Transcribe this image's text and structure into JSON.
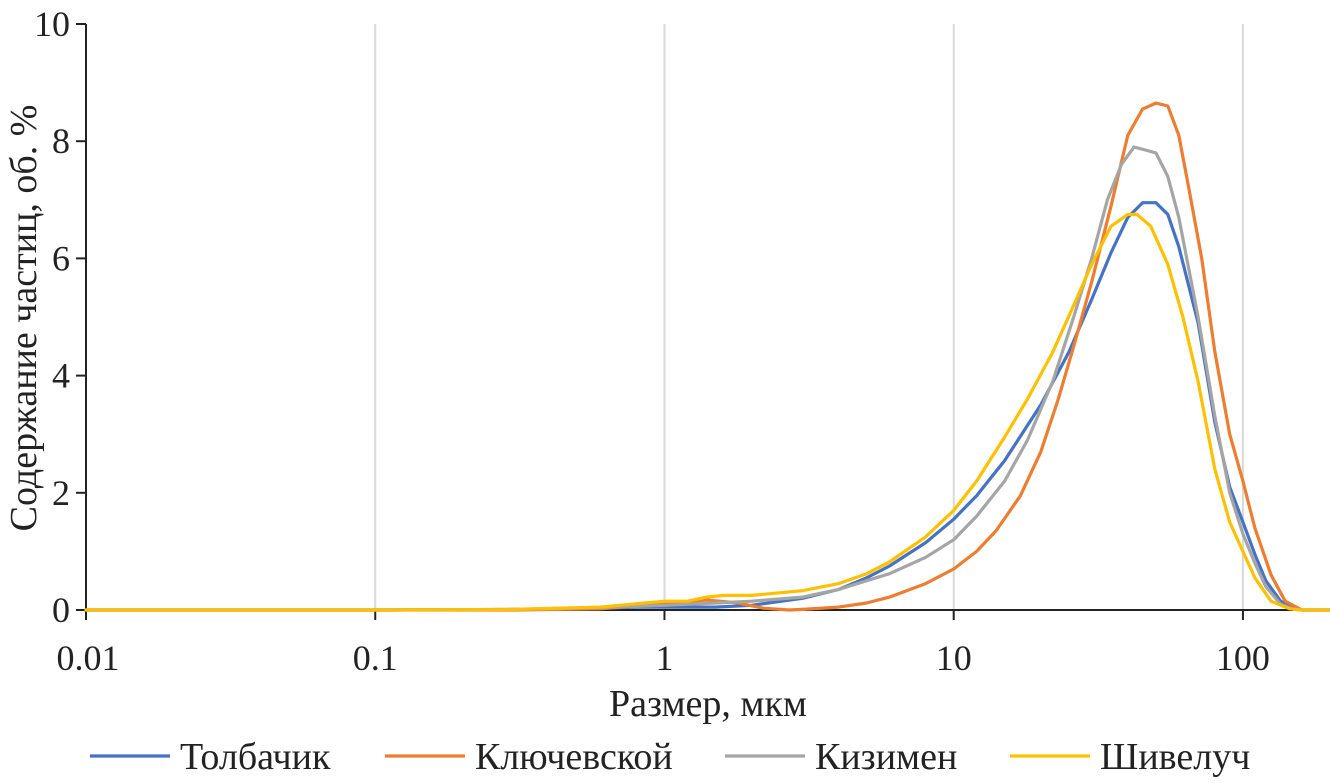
{
  "chart_data": {
    "type": "line",
    "title": "",
    "xlabel": "Размер, мкм",
    "ylabel": "Содержание частиц, об. %",
    "x_scale": "log",
    "xlim": [
      0.01,
      200
    ],
    "ylim": [
      0,
      10
    ],
    "x_ticks": [
      0.01,
      0.1,
      1,
      10,
      100
    ],
    "x_tick_labels": [
      "0.01",
      "0.1",
      "1",
      "10",
      "100"
    ],
    "y_ticks": [
      0,
      2,
      4,
      6,
      8,
      10
    ],
    "y_tick_labels": [
      "0",
      "2",
      "4",
      "6",
      "8",
      "10"
    ],
    "grid": "vertical",
    "legend": "bottom",
    "series": [
      {
        "name": "Толбачик",
        "color": "#4472c4",
        "points": [
          [
            0.01,
            0
          ],
          [
            0.1,
            0
          ],
          [
            0.3,
            0.01
          ],
          [
            0.5,
            0.02
          ],
          [
            0.8,
            0.05
          ],
          [
            1,
            0.05
          ],
          [
            1.5,
            0.05
          ],
          [
            2,
            0.08
          ],
          [
            3,
            0.2
          ],
          [
            4,
            0.35
          ],
          [
            5,
            0.55
          ],
          [
            6,
            0.75
          ],
          [
            8,
            1.15
          ],
          [
            10,
            1.55
          ],
          [
            12,
            1.95
          ],
          [
            15,
            2.55
          ],
          [
            20,
            3.5
          ],
          [
            25,
            4.4
          ],
          [
            30,
            5.3
          ],
          [
            35,
            6.1
          ],
          [
            40,
            6.7
          ],
          [
            45,
            6.95
          ],
          [
            50,
            6.95
          ],
          [
            55,
            6.75
          ],
          [
            60,
            6.2
          ],
          [
            70,
            4.9
          ],
          [
            80,
            3.2
          ],
          [
            90,
            2.1
          ],
          [
            100,
            1.5
          ],
          [
            110,
            0.95
          ],
          [
            120,
            0.5
          ],
          [
            135,
            0.15
          ],
          [
            150,
            0.02
          ],
          [
            160,
            0
          ],
          [
            200,
            0
          ]
        ]
      },
      {
        "name": "Ключевской",
        "color": "#ed7d31",
        "points": [
          [
            0.01,
            0
          ],
          [
            0.1,
            0
          ],
          [
            0.3,
            0
          ],
          [
            0.6,
            0.02
          ],
          [
            1,
            0.1
          ],
          [
            1.4,
            0.17
          ],
          [
            1.8,
            0.12
          ],
          [
            2.2,
            0.03
          ],
          [
            2.7,
            0
          ],
          [
            3,
            0.01
          ],
          [
            4,
            0.05
          ],
          [
            5,
            0.12
          ],
          [
            6,
            0.22
          ],
          [
            8,
            0.45
          ],
          [
            10,
            0.7
          ],
          [
            12,
            1.0
          ],
          [
            14,
            1.35
          ],
          [
            17,
            1.95
          ],
          [
            20,
            2.7
          ],
          [
            23,
            3.6
          ],
          [
            26,
            4.5
          ],
          [
            30,
            5.6
          ],
          [
            35,
            6.9
          ],
          [
            40,
            8.1
          ],
          [
            45,
            8.55
          ],
          [
            50,
            8.65
          ],
          [
            55,
            8.6
          ],
          [
            60,
            8.1
          ],
          [
            65,
            7.2
          ],
          [
            72,
            6.0
          ],
          [
            80,
            4.4
          ],
          [
            90,
            3.0
          ],
          [
            100,
            2.2
          ],
          [
            110,
            1.4
          ],
          [
            125,
            0.6
          ],
          [
            140,
            0.15
          ],
          [
            160,
            0
          ],
          [
            200,
            0
          ]
        ]
      },
      {
        "name": "Кизимен",
        "color": "#a5a5a5",
        "points": [
          [
            0.01,
            0
          ],
          [
            0.1,
            0
          ],
          [
            0.3,
            0.01
          ],
          [
            0.6,
            0.04
          ],
          [
            1,
            0.08
          ],
          [
            1.5,
            0.12
          ],
          [
            2,
            0.15
          ],
          [
            3,
            0.22
          ],
          [
            4,
            0.35
          ],
          [
            5,
            0.5
          ],
          [
            6,
            0.62
          ],
          [
            8,
            0.9
          ],
          [
            10,
            1.2
          ],
          [
            12,
            1.6
          ],
          [
            15,
            2.2
          ],
          [
            18,
            2.9
          ],
          [
            22,
            3.9
          ],
          [
            26,
            5.0
          ],
          [
            30,
            6.0
          ],
          [
            34,
            7.0
          ],
          [
            38,
            7.6
          ],
          [
            42,
            7.9
          ],
          [
            46,
            7.85
          ],
          [
            50,
            7.8
          ],
          [
            55,
            7.4
          ],
          [
            60,
            6.7
          ],
          [
            70,
            5.0
          ],
          [
            80,
            3.3
          ],
          [
            90,
            2.0
          ],
          [
            100,
            1.3
          ],
          [
            110,
            0.8
          ],
          [
            120,
            0.4
          ],
          [
            135,
            0.1
          ],
          [
            150,
            0.01
          ],
          [
            160,
            0
          ],
          [
            200,
            0
          ]
        ]
      },
      {
        "name": "Шивелуч",
        "color": "#ffc000",
        "points": [
          [
            0.01,
            0
          ],
          [
            0.1,
            0
          ],
          [
            0.3,
            0.01
          ],
          [
            0.6,
            0.05
          ],
          [
            1,
            0.15
          ],
          [
            1.2,
            0.15
          ],
          [
            1.4,
            0.22
          ],
          [
            1.6,
            0.25
          ],
          [
            2,
            0.25
          ],
          [
            3,
            0.33
          ],
          [
            4,
            0.45
          ],
          [
            5,
            0.62
          ],
          [
            6,
            0.82
          ],
          [
            8,
            1.25
          ],
          [
            10,
            1.7
          ],
          [
            12,
            2.2
          ],
          [
            15,
            2.95
          ],
          [
            18,
            3.6
          ],
          [
            22,
            4.4
          ],
          [
            26,
            5.2
          ],
          [
            30,
            5.9
          ],
          [
            35,
            6.55
          ],
          [
            40,
            6.75
          ],
          [
            43,
            6.75
          ],
          [
            48,
            6.55
          ],
          [
            55,
            5.9
          ],
          [
            62,
            5.0
          ],
          [
            70,
            3.9
          ],
          [
            80,
            2.4
          ],
          [
            90,
            1.5
          ],
          [
            100,
            1.0
          ],
          [
            110,
            0.55
          ],
          [
            125,
            0.15
          ],
          [
            145,
            0.02
          ],
          [
            160,
            0
          ],
          [
            200,
            0
          ]
        ]
      }
    ]
  }
}
